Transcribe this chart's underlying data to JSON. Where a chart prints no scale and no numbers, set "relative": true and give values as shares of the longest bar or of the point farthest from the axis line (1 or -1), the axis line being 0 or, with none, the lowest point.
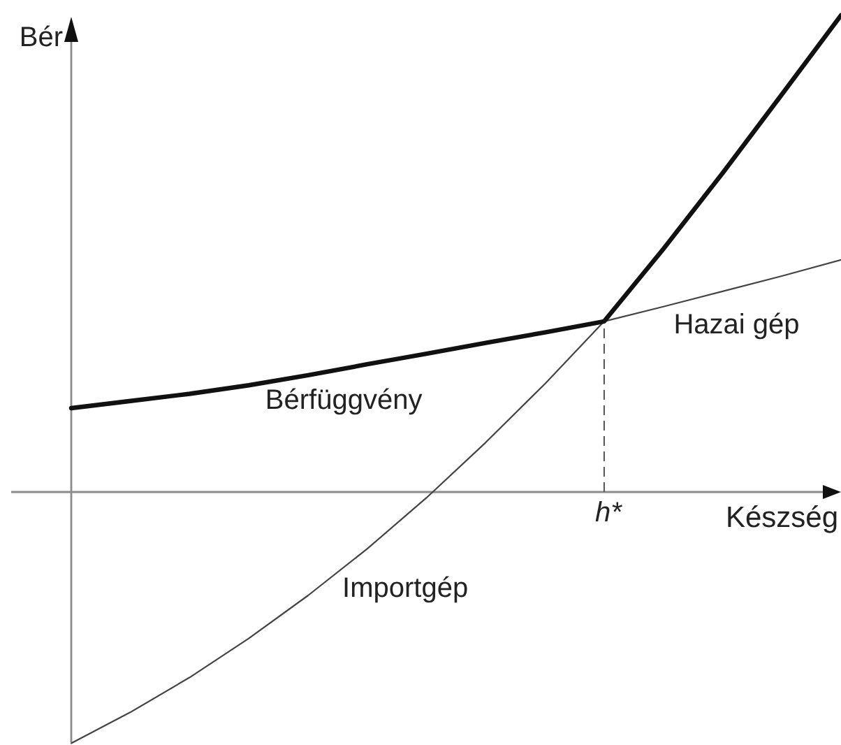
{
  "chart_data": {
    "type": "line",
    "relative": true,
    "xlabel": "Készség",
    "ylabel": "Bér",
    "line_style": "solid",
    "categories": [
      null,
      null,
      null,
      null,
      null,
      null,
      null,
      null,
      null,
      null,
      null,
      null,
      null,
      null
    ],
    "series": [
      {
        "name": "Hazai gép",
        "color": "#444444",
        "values": [
          null,
          null,
          null,
          null,
          null,
          null,
          null,
          null,
          null,
          0.358,
          0.389,
          0.421,
          0.453,
          0.487
        ]
      },
      {
        "name": "Importgép",
        "color": "#444444",
        "values": [
          -0.527,
          -0.462,
          -0.389,
          -0.307,
          -0.217,
          -0.119,
          -0.012,
          0.104,
          0.227,
          0.358,
          null,
          null,
          null,
          null
        ]
      },
      {
        "name": "Bérfüggvény",
        "color": "#111111",
        "values": [
          0.176,
          0.191,
          0.206,
          0.224,
          0.245,
          0.268,
          0.29,
          0.313,
          0.335,
          0.358,
          0.51,
          0.669,
          0.834,
          1.0
        ]
      }
    ],
    "ref_lines": [
      {
        "axis": "x",
        "value": "h*",
        "line_style": "dashed",
        "color": "#555555"
      }
    ]
  }
}
